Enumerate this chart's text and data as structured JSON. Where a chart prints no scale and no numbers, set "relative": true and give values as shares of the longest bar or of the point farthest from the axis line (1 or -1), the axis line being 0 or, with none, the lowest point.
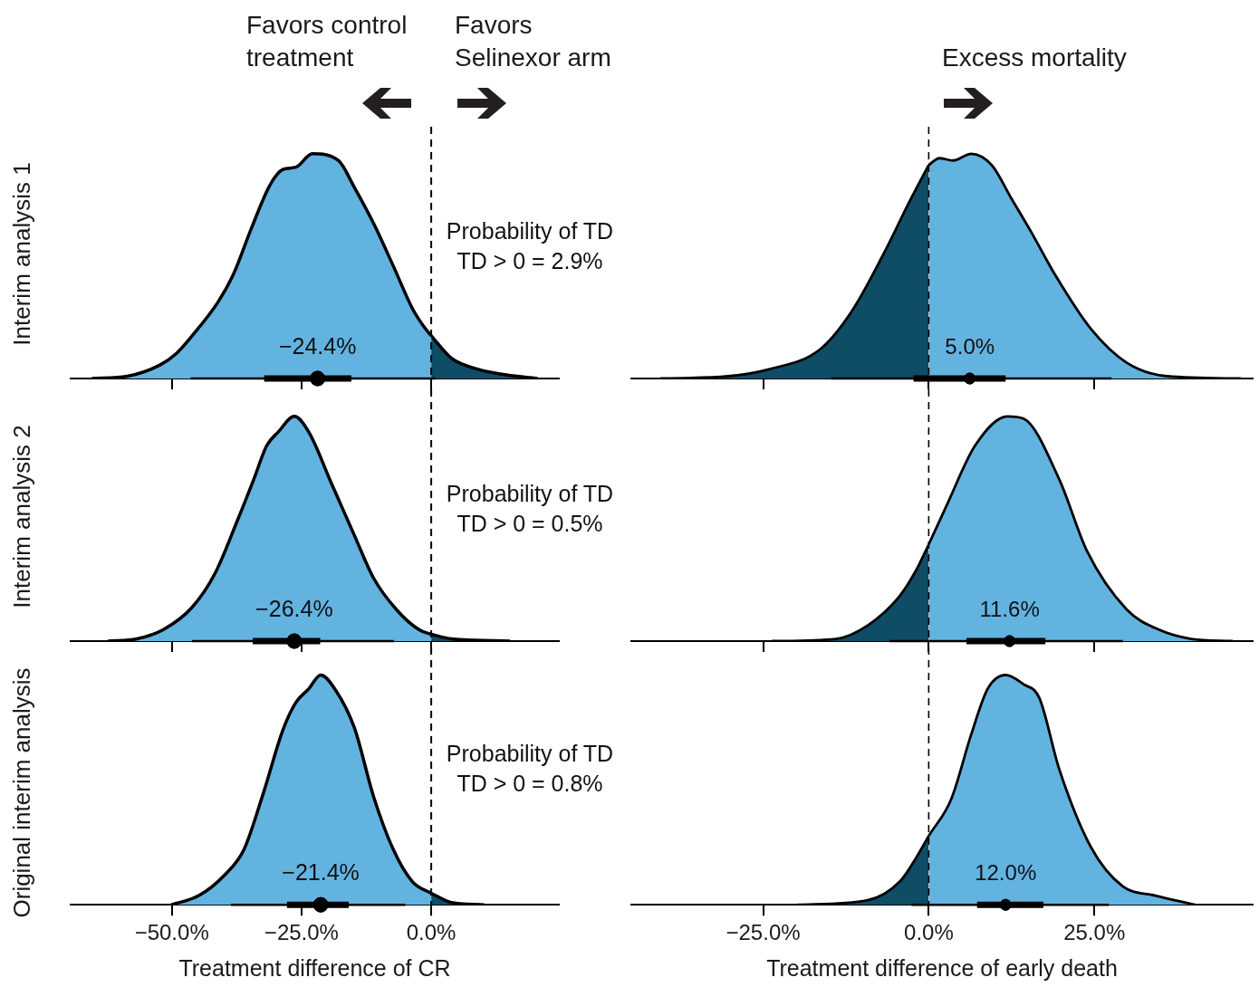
{
  "chart_data": [
    {
      "type": "area",
      "relative": true,
      "title": "Favors control treatment",
      "subtitle": "Favors Selinexor arm",
      "ylabel": "Interim analysis 1",
      "tick_labels": false,
      "xlim": [
        -69.5,
        24.6
      ],
      "xticks": [
        {
          "value": -50,
          "label": null
        },
        {
          "value": -25,
          "label": null
        },
        {
          "value": 0,
          "label": null
        }
      ],
      "ref_lines": [
        {
          "axis": "x",
          "value": 0,
          "line_style": "dashed"
        }
      ],
      "annotations": [
        "Probability of TD\nTD > 0 = 2.9%",
        "−24.4%"
      ],
      "series": [
        {
          "color": "#63b3e1",
          "x": [
            -65.4,
            -58.6,
            -52.3,
            -49.2,
            -46.1,
            -41.1,
            -38,
            -34.8,
            -31.1,
            -28.6,
            -26.1,
            -22.9,
            -17.9,
            -14.8,
            -11.1,
            -7.3,
            -3.6,
            -1.7,
            0
          ],
          "values": [
            0,
            0.01,
            0.06,
            0.11,
            0.19,
            0.34,
            0.47,
            0.66,
            0.86,
            0.93,
            0.94,
            1,
            0.97,
            0.85,
            0.69,
            0.5,
            0.31,
            0.24,
            0.19
          ]
        },
        {
          "color": "#0f4d66",
          "x": [
            0,
            3.9,
            7.7,
            13.3,
            20.5
          ],
          "values": [
            0.19,
            0.09,
            0.05,
            0.02,
            0
          ]
        },
        {
          "type": "scatter",
          "color": "#000000",
          "marker": "circle",
          "x": [
            -21.9
          ],
          "values": [
            0
          ],
          "xerrors": [
            [
              -46.4,
              0.8
            ]
          ]
        },
        {
          "type": "scatter",
          "color": "#000000",
          "marker": "circle",
          "x": [
            -21.9
          ],
          "values": [
            0
          ],
          "xerrors": [
            [
              -32.2,
              -15.4
            ]
          ]
        }
      ]
    },
    {
      "type": "area",
      "relative": true,
      "title": "Excess mortality",
      "tick_labels": false,
      "xlim": [
        -44.9,
        48.9
      ],
      "xticks": [
        {
          "value": -25,
          "label": null
        },
        {
          "value": 0,
          "label": null
        },
        {
          "value": 25,
          "label": null
        }
      ],
      "ref_lines": [
        {
          "axis": "x",
          "value": 0,
          "line_style": "dashed"
        }
      ],
      "annotations": [
        "5.0%"
      ],
      "series": [
        {
          "color": "#0f4d66",
          "x": [
            -40.5,
            -30.3,
            -24.3,
            -16.4,
            -11.6,
            -6.2,
            -3.2,
            0
          ],
          "values": [
            0,
            0.01,
            0.04,
            0.13,
            0.3,
            0.59,
            0.77,
            0.95
          ]
        },
        {
          "color": "#63b3e1",
          "x": [
            0,
            1.6,
            3.7,
            6.4,
            9.5,
            12.5,
            15.5,
            19.1,
            24.5,
            29.9,
            36,
            47.1
          ],
          "values": [
            0.95,
            0.98,
            0.97,
            1,
            0.95,
            0.8,
            0.65,
            0.46,
            0.22,
            0.07,
            0.01,
            0
          ]
        },
        {
          "type": "scatter",
          "color": "#000000",
          "marker": "circle",
          "x": [
            6.2
          ],
          "values": [
            0
          ],
          "xerrors": [
            [
              -14.7,
              27.6
            ]
          ]
        },
        {
          "type": "scatter",
          "color": "#000000",
          "marker": "circle",
          "x": [
            6.2
          ],
          "values": [
            0
          ],
          "xerrors": [
            [
              -2.3,
              11.6
            ]
          ]
        }
      ]
    },
    {
      "type": "area",
      "relative": true,
      "ylabel": "Interim analysis 2",
      "tick_labels": false,
      "xlim": [
        -69.5,
        24.6
      ],
      "xticks": [
        {
          "value": -50,
          "label": null
        },
        {
          "value": -25,
          "label": null
        },
        {
          "value": 0,
          "label": null
        }
      ],
      "ref_lines": [
        {
          "axis": "x",
          "value": 0,
          "line_style": "dashed"
        }
      ],
      "annotations": [
        "Probability of TD\nTD > 0 = 0.5%",
        "−26.4%"
      ],
      "series": [
        {
          "color": "#63b3e1",
          "x": [
            -62.3,
            -56.7,
            -51.7,
            -46.1,
            -41.7,
            -37.3,
            -34.2,
            -31.7,
            -29.5,
            -26.4,
            -23.6,
            -19.2,
            -14.8,
            -11.1,
            -6.7,
            -2.3,
            0
          ],
          "values": [
            0,
            0.01,
            0.05,
            0.15,
            0.3,
            0.54,
            0.72,
            0.87,
            0.93,
            1,
            0.93,
            0.7,
            0.47,
            0.28,
            0.14,
            0.05,
            0.03
          ]
        },
        {
          "color": "#0f4d66",
          "x": [
            0,
            3.9,
            15.2
          ],
          "values": [
            0.03,
            0.01,
            0
          ]
        },
        {
          "type": "scatter",
          "color": "#000000",
          "marker": "circle",
          "x": [
            -26.4
          ],
          "values": [
            0
          ],
          "xerrors": [
            [
              -46.1,
              -7.2
            ]
          ]
        },
        {
          "type": "scatter",
          "color": "#000000",
          "marker": "circle",
          "x": [
            -26.4
          ],
          "values": [
            0
          ],
          "xerrors": [
            [
              -34.4,
              -21.4
            ]
          ]
        }
      ]
    },
    {
      "type": "area",
      "relative": true,
      "tick_labels": false,
      "xlim": [
        -44.9,
        48.9
      ],
      "xticks": [
        {
          "value": -25,
          "label": null
        },
        {
          "value": 0,
          "label": null
        },
        {
          "value": 25,
          "label": null
        }
      ],
      "ref_lines": [
        {
          "axis": "x",
          "value": 0,
          "line_style": "dashed"
        }
      ],
      "annotations": [
        "11.6%"
      ],
      "series": [
        {
          "color": "#0f4d66",
          "x": [
            -23.7,
            -14,
            -9.2,
            -4.4,
            -2,
            0
          ],
          "values": [
            0,
            0.01,
            0.07,
            0.2,
            0.31,
            0.43
          ]
        },
        {
          "color": "#63b3e1",
          "x": [
            0,
            2.8,
            7,
            11.9,
            14.3,
            19.7,
            23.9,
            29.9,
            34.8,
            39.6,
            45.9
          ],
          "values": [
            0.43,
            0.61,
            0.87,
            1,
            0.99,
            0.72,
            0.4,
            0.14,
            0.05,
            0.01,
            0
          ]
        },
        {
          "type": "scatter",
          "color": "#000000",
          "marker": "circle",
          "x": [
            12.2
          ],
          "values": [
            0
          ],
          "xerrors": [
            [
              -5.9,
              29.3
            ]
          ]
        },
        {
          "type": "scatter",
          "color": "#000000",
          "marker": "circle",
          "x": [
            12.2
          ],
          "values": [
            0
          ],
          "xerrors": [
            [
              5.7,
              17.6
            ]
          ]
        }
      ]
    },
    {
      "type": "area",
      "relative": true,
      "ylabel": "Original interim analysis",
      "xlabel": "Treatment difference of CR",
      "tick_labels": "x",
      "xlim": [
        -69.5,
        24.6
      ],
      "xticks": [
        {
          "value": -50,
          "label": "−50.0%"
        },
        {
          "value": -25,
          "label": "−25.0%"
        },
        {
          "value": 0,
          "label": "0.0%"
        }
      ],
      "ref_lines": [
        {
          "axis": "x",
          "value": 0,
          "line_style": "dashed"
        }
      ],
      "annotations": [
        "Probability of TD\nTD > 0 = 0.8%",
        "−21.4%"
      ],
      "series": [
        {
          "color": "#63b3e1",
          "x": [
            -50.1,
            -44.8,
            -39.8,
            -36.1,
            -32.3,
            -28.6,
            -26.1,
            -23.6,
            -21.3,
            -18.6,
            -14.8,
            -11.1,
            -7.3,
            -3.6,
            0
          ],
          "values": [
            0,
            0.04,
            0.13,
            0.24,
            0.49,
            0.76,
            0.88,
            0.94,
            1,
            0.94,
            0.77,
            0.47,
            0.24,
            0.1,
            0.05
          ]
        },
        {
          "color": "#0f4d66",
          "x": [
            0,
            3.9,
            10.2
          ],
          "values": [
            0.05,
            0.01,
            0
          ]
        },
        {
          "type": "scatter",
          "color": "#000000",
          "marker": "circle",
          "x": [
            -21.3
          ],
          "values": [
            0
          ],
          "xerrors": [
            [
              -38.6,
              -5
            ]
          ]
        },
        {
          "type": "scatter",
          "color": "#000000",
          "marker": "circle",
          "x": [
            -21.3
          ],
          "values": [
            0
          ],
          "xerrors": [
            [
              -27.8,
              -15.9
            ]
          ]
        }
      ]
    },
    {
      "type": "area",
      "relative": true,
      "xlabel": "Treatment difference of early death",
      "tick_labels": "x",
      "xlim": [
        -44.9,
        48.9
      ],
      "xticks": [
        {
          "value": -25,
          "label": "−25.0%"
        },
        {
          "value": 0,
          "label": "0.0%"
        },
        {
          "value": 25,
          "label": "25.0%"
        }
      ],
      "ref_lines": [
        {
          "axis": "x",
          "value": 0,
          "line_style": "dashed"
        }
      ],
      "annotations": [
        "12.0%"
      ],
      "series": [
        {
          "color": "#0f4d66",
          "x": [
            -19.8,
            -9.2,
            -4.4,
            -2,
            0
          ],
          "values": [
            0,
            0.02,
            0.1,
            0.2,
            0.3
          ]
        },
        {
          "color": "#63b3e1",
          "x": [
            0,
            3.4,
            6.4,
            8.9,
            11.6,
            14.3,
            16.7,
            19.7,
            24.5,
            29.3,
            34.2,
            40.2
          ],
          "values": [
            0.3,
            0.46,
            0.74,
            0.94,
            1,
            0.96,
            0.9,
            0.59,
            0.25,
            0.08,
            0.04,
            0
          ]
        },
        {
          "type": "scatter",
          "color": "#000000",
          "marker": "circle",
          "x": [
            11.6
          ],
          "values": [
            0
          ],
          "xerrors": [
            [
              -2.6,
              27.2
            ]
          ]
        },
        {
          "type": "scatter",
          "color": "#000000",
          "marker": "circle",
          "x": [
            11.6
          ],
          "values": [
            0
          ],
          "xerrors": [
            [
              7.3,
              17.3
            ]
          ]
        }
      ]
    }
  ]
}
